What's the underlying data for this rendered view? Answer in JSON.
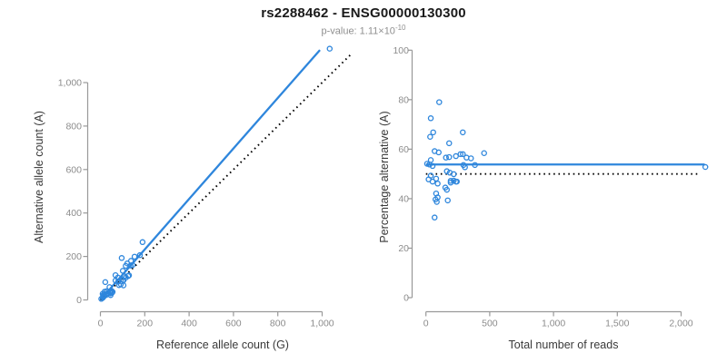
{
  "header": {
    "title": "rs2288462 - ENSG00000130300",
    "p_value_base": "p-value: 1.11×10",
    "p_value_exponent": "-10"
  },
  "colors": {
    "accent_blue": "#2E86DC",
    "dotted_black": "#000000",
    "axis": "#999999",
    "tick_label": "#8c8c8c",
    "axis_title": "#3a3a3a",
    "title": "#1a1a1a",
    "subtitle": "#8f8f8f",
    "background": "#ffffff"
  },
  "chart_data": [
    {
      "type": "scatter",
      "name": "allele-count-scatter",
      "xlabel": "Reference allele count (G)",
      "ylabel": "Alternative allele count (A)",
      "xlim": [
        0,
        1100
      ],
      "ylim": [
        0,
        1170
      ],
      "xticks": [
        0,
        200,
        400,
        600,
        800,
        1000
      ],
      "xtick_labels": [
        "0",
        "200",
        "400",
        "600",
        "800",
        "1,000"
      ],
      "yticks": [
        0,
        200,
        400,
        600,
        800,
        1000
      ],
      "ytick_labels": [
        "0",
        "200",
        "400",
        "600",
        "800",
        "1,000"
      ],
      "grid": false,
      "legend": "none",
      "points": [
        [
          1034,
          1156
        ],
        [
          190,
          266
        ],
        [
          22,
          82
        ],
        [
          10,
          28
        ],
        [
          19,
          38
        ],
        [
          12,
          21
        ],
        [
          96,
          193
        ],
        [
          68,
          114
        ],
        [
          28,
          40
        ],
        [
          41,
          59
        ],
        [
          68,
          89
        ],
        [
          79,
          103
        ],
        [
          101,
          134
        ],
        [
          114,
          157
        ],
        [
          121,
          168
        ],
        [
          138,
          180
        ],
        [
          154,
          199
        ],
        [
          17,
          21
        ],
        [
          4,
          5
        ],
        [
          13,
          15
        ],
        [
          24,
          28
        ],
        [
          136,
          158
        ],
        [
          145,
          161
        ],
        [
          178,
          206
        ],
        [
          80,
          84
        ],
        [
          93,
          94
        ],
        [
          109,
          109
        ],
        [
          19,
          19
        ],
        [
          42,
          38
        ],
        [
          102,
          92
        ],
        [
          125,
          110
        ],
        [
          11,
          10
        ],
        [
          28,
          24
        ],
        [
          50,
          42
        ],
        [
          104,
          90
        ],
        [
          115,
          103
        ],
        [
          129,
          113
        ],
        [
          84,
          68
        ],
        [
          92,
          72
        ],
        [
          46,
          34
        ],
        [
          55,
          37
        ],
        [
          45,
          30
        ],
        [
          52,
          33
        ],
        [
          104,
          67
        ],
        [
          46,
          22
        ]
      ],
      "lines": [
        {
          "name": "fit-line",
          "style": "solid",
          "color": "#2E86DC",
          "from": [
            0,
            0
          ],
          "to": [
            990,
            1150
          ]
        },
        {
          "name": "identity-line",
          "style": "dotted",
          "color": "#000000",
          "from": [
            0,
            0
          ],
          "to": [
            1135,
            1135
          ]
        }
      ]
    },
    {
      "type": "scatter",
      "name": "reads-percentage-scatter",
      "xlabel": "Total number of reads",
      "ylabel": "Percentage alternative (A)",
      "xlim": [
        0,
        2200
      ],
      "ylim": [
        0,
        100
      ],
      "xticks": [
        0,
        500,
        1000,
        1500,
        2000
      ],
      "xtick_labels": [
        "0",
        "500",
        "1,000",
        "1,500",
        "2,000"
      ],
      "yticks": [
        0,
        20,
        40,
        60,
        80,
        100
      ],
      "ytick_labels": [
        "0",
        "20",
        "40",
        "60",
        "80",
        "100"
      ],
      "grid": false,
      "legend": "none",
      "points": [
        [
          2190,
          52.8
        ],
        [
          456,
          58.4
        ],
        [
          104,
          79
        ],
        [
          38,
          72.5
        ],
        [
          57,
          66.8
        ],
        [
          33,
          65
        ],
        [
          289,
          66.8
        ],
        [
          182,
          62.4
        ],
        [
          68,
          59.2
        ],
        [
          100,
          58.7
        ],
        [
          157,
          56.6
        ],
        [
          182,
          56.8
        ],
        [
          235,
          57.2
        ],
        [
          271,
          58
        ],
        [
          289,
          58
        ],
        [
          318,
          56.6
        ],
        [
          353,
          56.3
        ],
        [
          38,
          55.6
        ],
        [
          9,
          54.1
        ],
        [
          28,
          53.8
        ],
        [
          52,
          53.2
        ],
        [
          294,
          53.6
        ],
        [
          306,
          52.7
        ],
        [
          384,
          53.6
        ],
        [
          164,
          51.1
        ],
        [
          187,
          50.5
        ],
        [
          218,
          49.9
        ],
        [
          38,
          49.3
        ],
        [
          80,
          48.1
        ],
        [
          194,
          47.2
        ],
        [
          235,
          46.9
        ],
        [
          21,
          47.8
        ],
        [
          52,
          46.9
        ],
        [
          92,
          46.1
        ],
        [
          194,
          46.5
        ],
        [
          218,
          47.3
        ],
        [
          242,
          46.9
        ],
        [
          152,
          44.5
        ],
        [
          164,
          43.6
        ],
        [
          80,
          42.1
        ],
        [
          92,
          40.5
        ],
        [
          75,
          39.7
        ],
        [
          85,
          38.7
        ],
        [
          171,
          39.3
        ],
        [
          68,
          32.4
        ]
      ],
      "lines": [
        {
          "name": "fit-line",
          "style": "solid",
          "color": "#2E86DC",
          "from": [
            0,
            53.8
          ],
          "to": [
            2185,
            53.8
          ]
        },
        {
          "name": "expected-50-line",
          "style": "dotted",
          "color": "#000000",
          "from": [
            0,
            50
          ],
          "to": [
            2135,
            50
          ]
        }
      ]
    }
  ]
}
